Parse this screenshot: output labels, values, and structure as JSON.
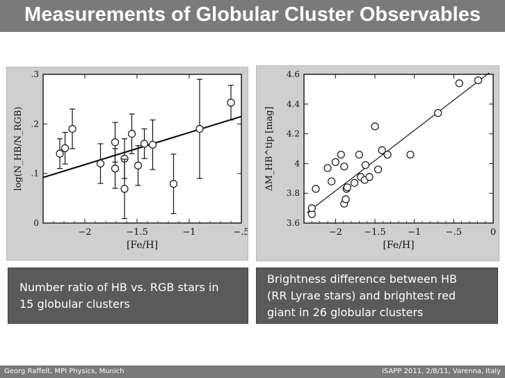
{
  "title": "Measurements of Globular Cluster Observables",
  "footer": {
    "left": "Georg Raffelt, MPI Physics, Munich",
    "right": "ISAPP 2011, 2/8/11, Varenna, Italy"
  },
  "captions": {
    "left": "Number ratio of HB vs. RGB stars in 15 globular clusters",
    "right": "Brightness difference between HB (RR Lyrae stars) and brightest red giant in 26 globular clusters"
  },
  "chart_data": [
    {
      "type": "scatter",
      "xlabel": "[Fe/H]",
      "ylabel": "log(N_HB/N_RGB)",
      "xlim": [
        -2.4,
        -0.5
      ],
      "ylim": [
        0,
        0.3
      ],
      "xticks": [
        -2.0,
        -1.5,
        -1.0,
        -0.5
      ],
      "xtick_labels": [
        "−2",
        "−1.5",
        "−1",
        "−.5"
      ],
      "yticks": [
        0,
        0.1,
        0.2,
        0.3
      ],
      "ytick_labels": [
        "0",
        ".1",
        ".2",
        ".3"
      ],
      "points": [
        {
          "x": -2.24,
          "y": 0.14,
          "err": 0.03
        },
        {
          "x": -2.19,
          "y": 0.151,
          "err": 0.032
        },
        {
          "x": -2.12,
          "y": 0.19,
          "err": 0.04
        },
        {
          "x": -1.85,
          "y": 0.12,
          "err": 0.04
        },
        {
          "x": -1.71,
          "y": 0.163,
          "err": 0.04
        },
        {
          "x": -1.71,
          "y": 0.11,
          "err": 0.04
        },
        {
          "x": -1.62,
          "y": 0.13,
          "err": 0.04
        },
        {
          "x": -1.62,
          "y": 0.069,
          "err": 0.06
        },
        {
          "x": -1.55,
          "y": 0.18,
          "err": 0.04
        },
        {
          "x": -1.49,
          "y": 0.116,
          "err": 0.04
        },
        {
          "x": -1.43,
          "y": 0.16,
          "err": 0.03
        },
        {
          "x": -1.35,
          "y": 0.158,
          "err": 0.05
        },
        {
          "x": -1.15,
          "y": 0.079,
          "err": 0.06
        },
        {
          "x": -0.9,
          "y": 0.19,
          "err": 0.1
        },
        {
          "x": -0.6,
          "y": 0.243,
          "err": 0.035
        }
      ],
      "fit_line": {
        "x": [
          -2.4,
          -0.5
        ],
        "y": [
          0.092,
          0.215
        ]
      }
    },
    {
      "type": "scatter",
      "xlabel": "[Fe/H]",
      "ylabel": "ΔM_HB^tip [mag]",
      "xlim": [
        -2.4,
        0
      ],
      "ylim": [
        3.6,
        4.6
      ],
      "xticks": [
        -2.0,
        -1.5,
        -1.0,
        -0.5,
        0
      ],
      "xtick_labels": [
        "−2",
        "−1.5",
        "−1",
        "−.5",
        "0"
      ],
      "yticks": [
        3.6,
        3.8,
        4.0,
        4.2,
        4.4,
        4.6
      ],
      "ytick_labels": [
        "3.6",
        "3.8",
        "4",
        "4.2",
        "4.4",
        "4.6"
      ],
      "points": [
        {
          "x": -2.3,
          "y": 3.66
        },
        {
          "x": -2.3,
          "y": 3.7
        },
        {
          "x": -2.25,
          "y": 3.83
        },
        {
          "x": -2.1,
          "y": 3.97
        },
        {
          "x": -2.05,
          "y": 3.88
        },
        {
          "x": -2.0,
          "y": 4.01
        },
        {
          "x": -1.93,
          "y": 4.06
        },
        {
          "x": -1.89,
          "y": 3.98
        },
        {
          "x": -1.89,
          "y": 3.73
        },
        {
          "x": -1.87,
          "y": 3.76
        },
        {
          "x": -1.86,
          "y": 3.83
        },
        {
          "x": -1.85,
          "y": 3.84
        },
        {
          "x": -1.76,
          "y": 3.87
        },
        {
          "x": -1.7,
          "y": 4.06
        },
        {
          "x": -1.68,
          "y": 3.91
        },
        {
          "x": -1.63,
          "y": 3.89
        },
        {
          "x": -1.62,
          "y": 3.99
        },
        {
          "x": -1.57,
          "y": 3.91
        },
        {
          "x": -1.5,
          "y": 4.25
        },
        {
          "x": -1.46,
          "y": 3.96
        },
        {
          "x": -1.41,
          "y": 4.09
        },
        {
          "x": -1.34,
          "y": 4.06
        },
        {
          "x": -1.05,
          "y": 4.06
        },
        {
          "x": -0.7,
          "y": 4.34
        },
        {
          "x": -0.43,
          "y": 4.54
        },
        {
          "x": -0.19,
          "y": 4.56
        }
      ],
      "fit_line": {
        "x": [
          -2.36,
          -0.05
        ],
        "y": [
          3.67,
          4.61
        ]
      }
    }
  ]
}
